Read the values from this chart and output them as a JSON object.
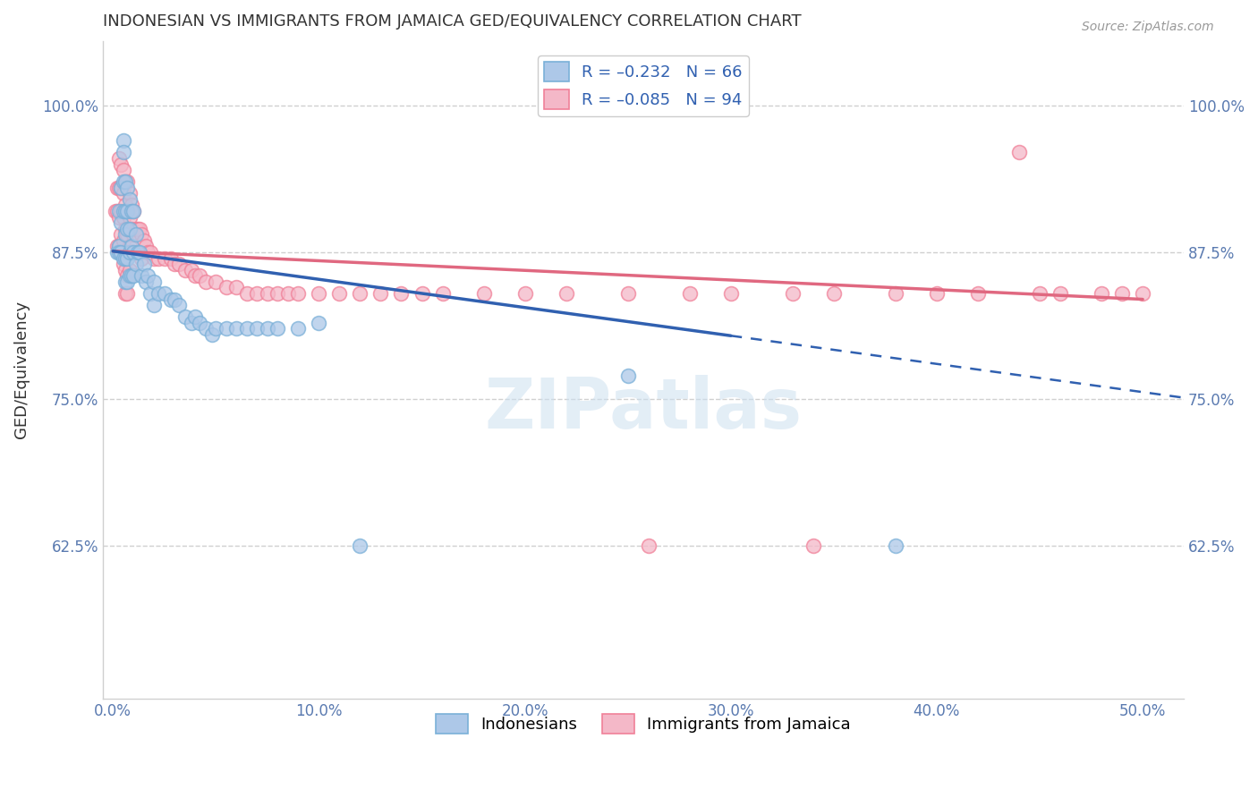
{
  "title": "INDONESIAN VS IMMIGRANTS FROM JAMAICA GED/EQUIVALENCY CORRELATION CHART",
  "source": "Source: ZipAtlas.com",
  "xlabel_ticks": [
    "0.0%",
    "10.0%",
    "20.0%",
    "30.0%",
    "40.0%",
    "50.0%"
  ],
  "xlabel_vals": [
    0.0,
    0.1,
    0.2,
    0.3,
    0.4,
    0.5
  ],
  "ylabel_ticks": [
    "62.5%",
    "75.0%",
    "87.5%",
    "100.0%"
  ],
  "ylabel_vals": [
    0.625,
    0.75,
    0.875,
    1.0
  ],
  "ylabel_label": "GED/Equivalency",
  "xlim": [
    -0.005,
    0.52
  ],
  "ylim": [
    0.495,
    1.055
  ],
  "legend_entries": [
    {
      "label": "R = –0.232   N = 66",
      "color": "#a8c4e0"
    },
    {
      "label": "R = –0.085   N = 94",
      "color": "#f4b8c8"
    }
  ],
  "legend_labels": [
    "Indonesians",
    "Immigrants from Jamaica"
  ],
  "blue_color": "#7ab0d8",
  "pink_color": "#f08098",
  "blue_fill": "#adc8e8",
  "pink_fill": "#f4b8c8",
  "trend_blue_color": "#3060b0",
  "trend_pink_color": "#e06880",
  "blue_trend_x0": 0.0,
  "blue_trend_y0": 0.876,
  "blue_trend_x1": 0.3,
  "blue_trend_y1": 0.804,
  "blue_trend_xdash0": 0.3,
  "blue_trend_xdash1": 0.52,
  "pink_trend_x0": 0.0,
  "pink_trend_y0": 0.876,
  "pink_trend_x1": 0.5,
  "pink_trend_y1": 0.835,
  "blue_x": [
    0.002,
    0.003,
    0.003,
    0.003,
    0.004,
    0.004,
    0.004,
    0.005,
    0.005,
    0.005,
    0.005,
    0.005,
    0.006,
    0.006,
    0.006,
    0.006,
    0.006,
    0.007,
    0.007,
    0.007,
    0.007,
    0.007,
    0.008,
    0.008,
    0.008,
    0.008,
    0.009,
    0.009,
    0.009,
    0.01,
    0.01,
    0.01,
    0.011,
    0.011,
    0.012,
    0.013,
    0.014,
    0.015,
    0.016,
    0.017,
    0.018,
    0.02,
    0.02,
    0.022,
    0.025,
    0.028,
    0.03,
    0.032,
    0.035,
    0.038,
    0.04,
    0.042,
    0.045,
    0.048,
    0.05,
    0.055,
    0.06,
    0.065,
    0.07,
    0.075,
    0.08,
    0.09,
    0.1,
    0.12,
    0.25,
    0.38
  ],
  "blue_y": [
    0.875,
    0.91,
    0.88,
    0.875,
    0.93,
    0.9,
    0.875,
    0.97,
    0.96,
    0.935,
    0.91,
    0.87,
    0.935,
    0.91,
    0.89,
    0.87,
    0.85,
    0.93,
    0.91,
    0.895,
    0.87,
    0.85,
    0.92,
    0.895,
    0.875,
    0.855,
    0.91,
    0.88,
    0.855,
    0.91,
    0.875,
    0.855,
    0.89,
    0.865,
    0.875,
    0.875,
    0.855,
    0.865,
    0.85,
    0.855,
    0.84,
    0.85,
    0.83,
    0.84,
    0.84,
    0.835,
    0.835,
    0.83,
    0.82,
    0.815,
    0.82,
    0.815,
    0.81,
    0.805,
    0.81,
    0.81,
    0.81,
    0.81,
    0.81,
    0.81,
    0.81,
    0.81,
    0.815,
    0.625,
    0.77,
    0.625
  ],
  "pink_x": [
    0.001,
    0.002,
    0.002,
    0.002,
    0.003,
    0.003,
    0.003,
    0.003,
    0.004,
    0.004,
    0.004,
    0.004,
    0.005,
    0.005,
    0.005,
    0.005,
    0.005,
    0.006,
    0.006,
    0.006,
    0.006,
    0.006,
    0.006,
    0.007,
    0.007,
    0.007,
    0.007,
    0.007,
    0.007,
    0.008,
    0.008,
    0.008,
    0.008,
    0.009,
    0.009,
    0.009,
    0.01,
    0.01,
    0.011,
    0.012,
    0.013,
    0.013,
    0.014,
    0.014,
    0.015,
    0.016,
    0.017,
    0.018,
    0.02,
    0.022,
    0.025,
    0.028,
    0.03,
    0.032,
    0.035,
    0.038,
    0.04,
    0.042,
    0.045,
    0.05,
    0.055,
    0.06,
    0.065,
    0.07,
    0.075,
    0.08,
    0.085,
    0.09,
    0.1,
    0.11,
    0.12,
    0.13,
    0.14,
    0.15,
    0.16,
    0.18,
    0.2,
    0.22,
    0.25,
    0.28,
    0.3,
    0.33,
    0.35,
    0.38,
    0.4,
    0.42,
    0.45,
    0.46,
    0.48,
    0.49,
    0.26,
    0.34,
    0.44,
    0.5
  ],
  "pink_y": [
    0.91,
    0.93,
    0.91,
    0.88,
    0.955,
    0.93,
    0.905,
    0.88,
    0.95,
    0.93,
    0.91,
    0.89,
    0.945,
    0.925,
    0.905,
    0.885,
    0.865,
    0.935,
    0.915,
    0.895,
    0.875,
    0.86,
    0.84,
    0.935,
    0.91,
    0.89,
    0.875,
    0.855,
    0.84,
    0.925,
    0.905,
    0.88,
    0.86,
    0.915,
    0.895,
    0.875,
    0.91,
    0.89,
    0.895,
    0.895,
    0.895,
    0.875,
    0.89,
    0.87,
    0.885,
    0.88,
    0.875,
    0.875,
    0.87,
    0.87,
    0.87,
    0.87,
    0.865,
    0.865,
    0.86,
    0.86,
    0.855,
    0.855,
    0.85,
    0.85,
    0.845,
    0.845,
    0.84,
    0.84,
    0.84,
    0.84,
    0.84,
    0.84,
    0.84,
    0.84,
    0.84,
    0.84,
    0.84,
    0.84,
    0.84,
    0.84,
    0.84,
    0.84,
    0.84,
    0.84,
    0.84,
    0.84,
    0.84,
    0.84,
    0.84,
    0.84,
    0.84,
    0.84,
    0.84,
    0.84,
    0.625,
    0.625,
    0.96,
    0.84
  ]
}
